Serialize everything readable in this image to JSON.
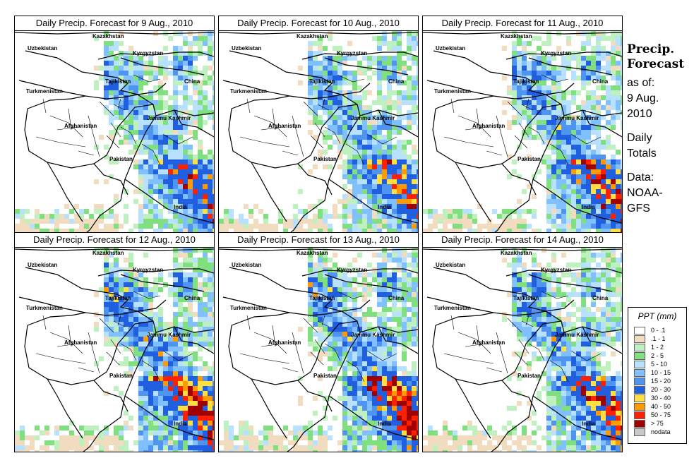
{
  "panels": [
    {
      "title": "Daily Precip. Forecast for  9 Aug., 2010",
      "seed": 11,
      "intensity": 0.9
    },
    {
      "title": "Daily Precip. Forecast for  10 Aug., 2010",
      "seed": 23,
      "intensity": 0.9
    },
    {
      "title": "Daily Precip. Forecast for  11 Aug., 2010",
      "seed": 37,
      "intensity": 1.0
    },
    {
      "title": "Daily Precip. Forecast for  12 Aug., 2010",
      "seed": 41,
      "intensity": 1.1
    },
    {
      "title": "Daily Precip. Forecast for  13 Aug., 2010",
      "seed": 53,
      "intensity": 1.1
    },
    {
      "title": "Daily Precip. Forecast for  14 Aug., 2010",
      "seed": 67,
      "intensity": 1.0
    }
  ],
  "map_labels": [
    "Kazakhstan",
    "Uzbekistan",
    "Kyrgyzstan",
    "Tajikistan",
    "Turkmenistan",
    "China",
    "Afghanistan",
    "Jammu Kashmir",
    "Pakistan",
    "India"
  ],
  "side": {
    "title_line1": "Precip.",
    "title_line2": "Forecast",
    "asof_line1": "as of:",
    "asof_line2": "9 Aug.",
    "asof_line3": "2010",
    "daily_line1": "Daily",
    "daily_line2": "Totals",
    "data_line1": "Data:",
    "data_line2": "NOAA-",
    "data_line3": "GFS"
  },
  "legend": {
    "title": "PPT (mm)",
    "items": [
      {
        "label": "0 - .1",
        "color": "#ffffff"
      },
      {
        "label": ".1 - 1",
        "color": "#f2dcc0"
      },
      {
        "label": "1 - 2",
        "color": "#bff0bf"
      },
      {
        "label": "2 - 5",
        "color": "#80e080"
      },
      {
        "label": "5 - 10",
        "color": "#b8e0ff"
      },
      {
        "label": "10 - 15",
        "color": "#80c0ff"
      },
      {
        "label": "15 - 20",
        "color": "#4f94f0"
      },
      {
        "label": "20 - 30",
        "color": "#1f5fe0"
      },
      {
        "label": "30 - 40",
        "color": "#ffe040"
      },
      {
        "label": "40 - 50",
        "color": "#ff9a00"
      },
      {
        "label": "50 - 75",
        "color": "#ff2000"
      },
      {
        "label": "> 75",
        "color": "#a00000"
      },
      {
        "label": "nodata",
        "color": "#c8c8c8"
      }
    ]
  }
}
